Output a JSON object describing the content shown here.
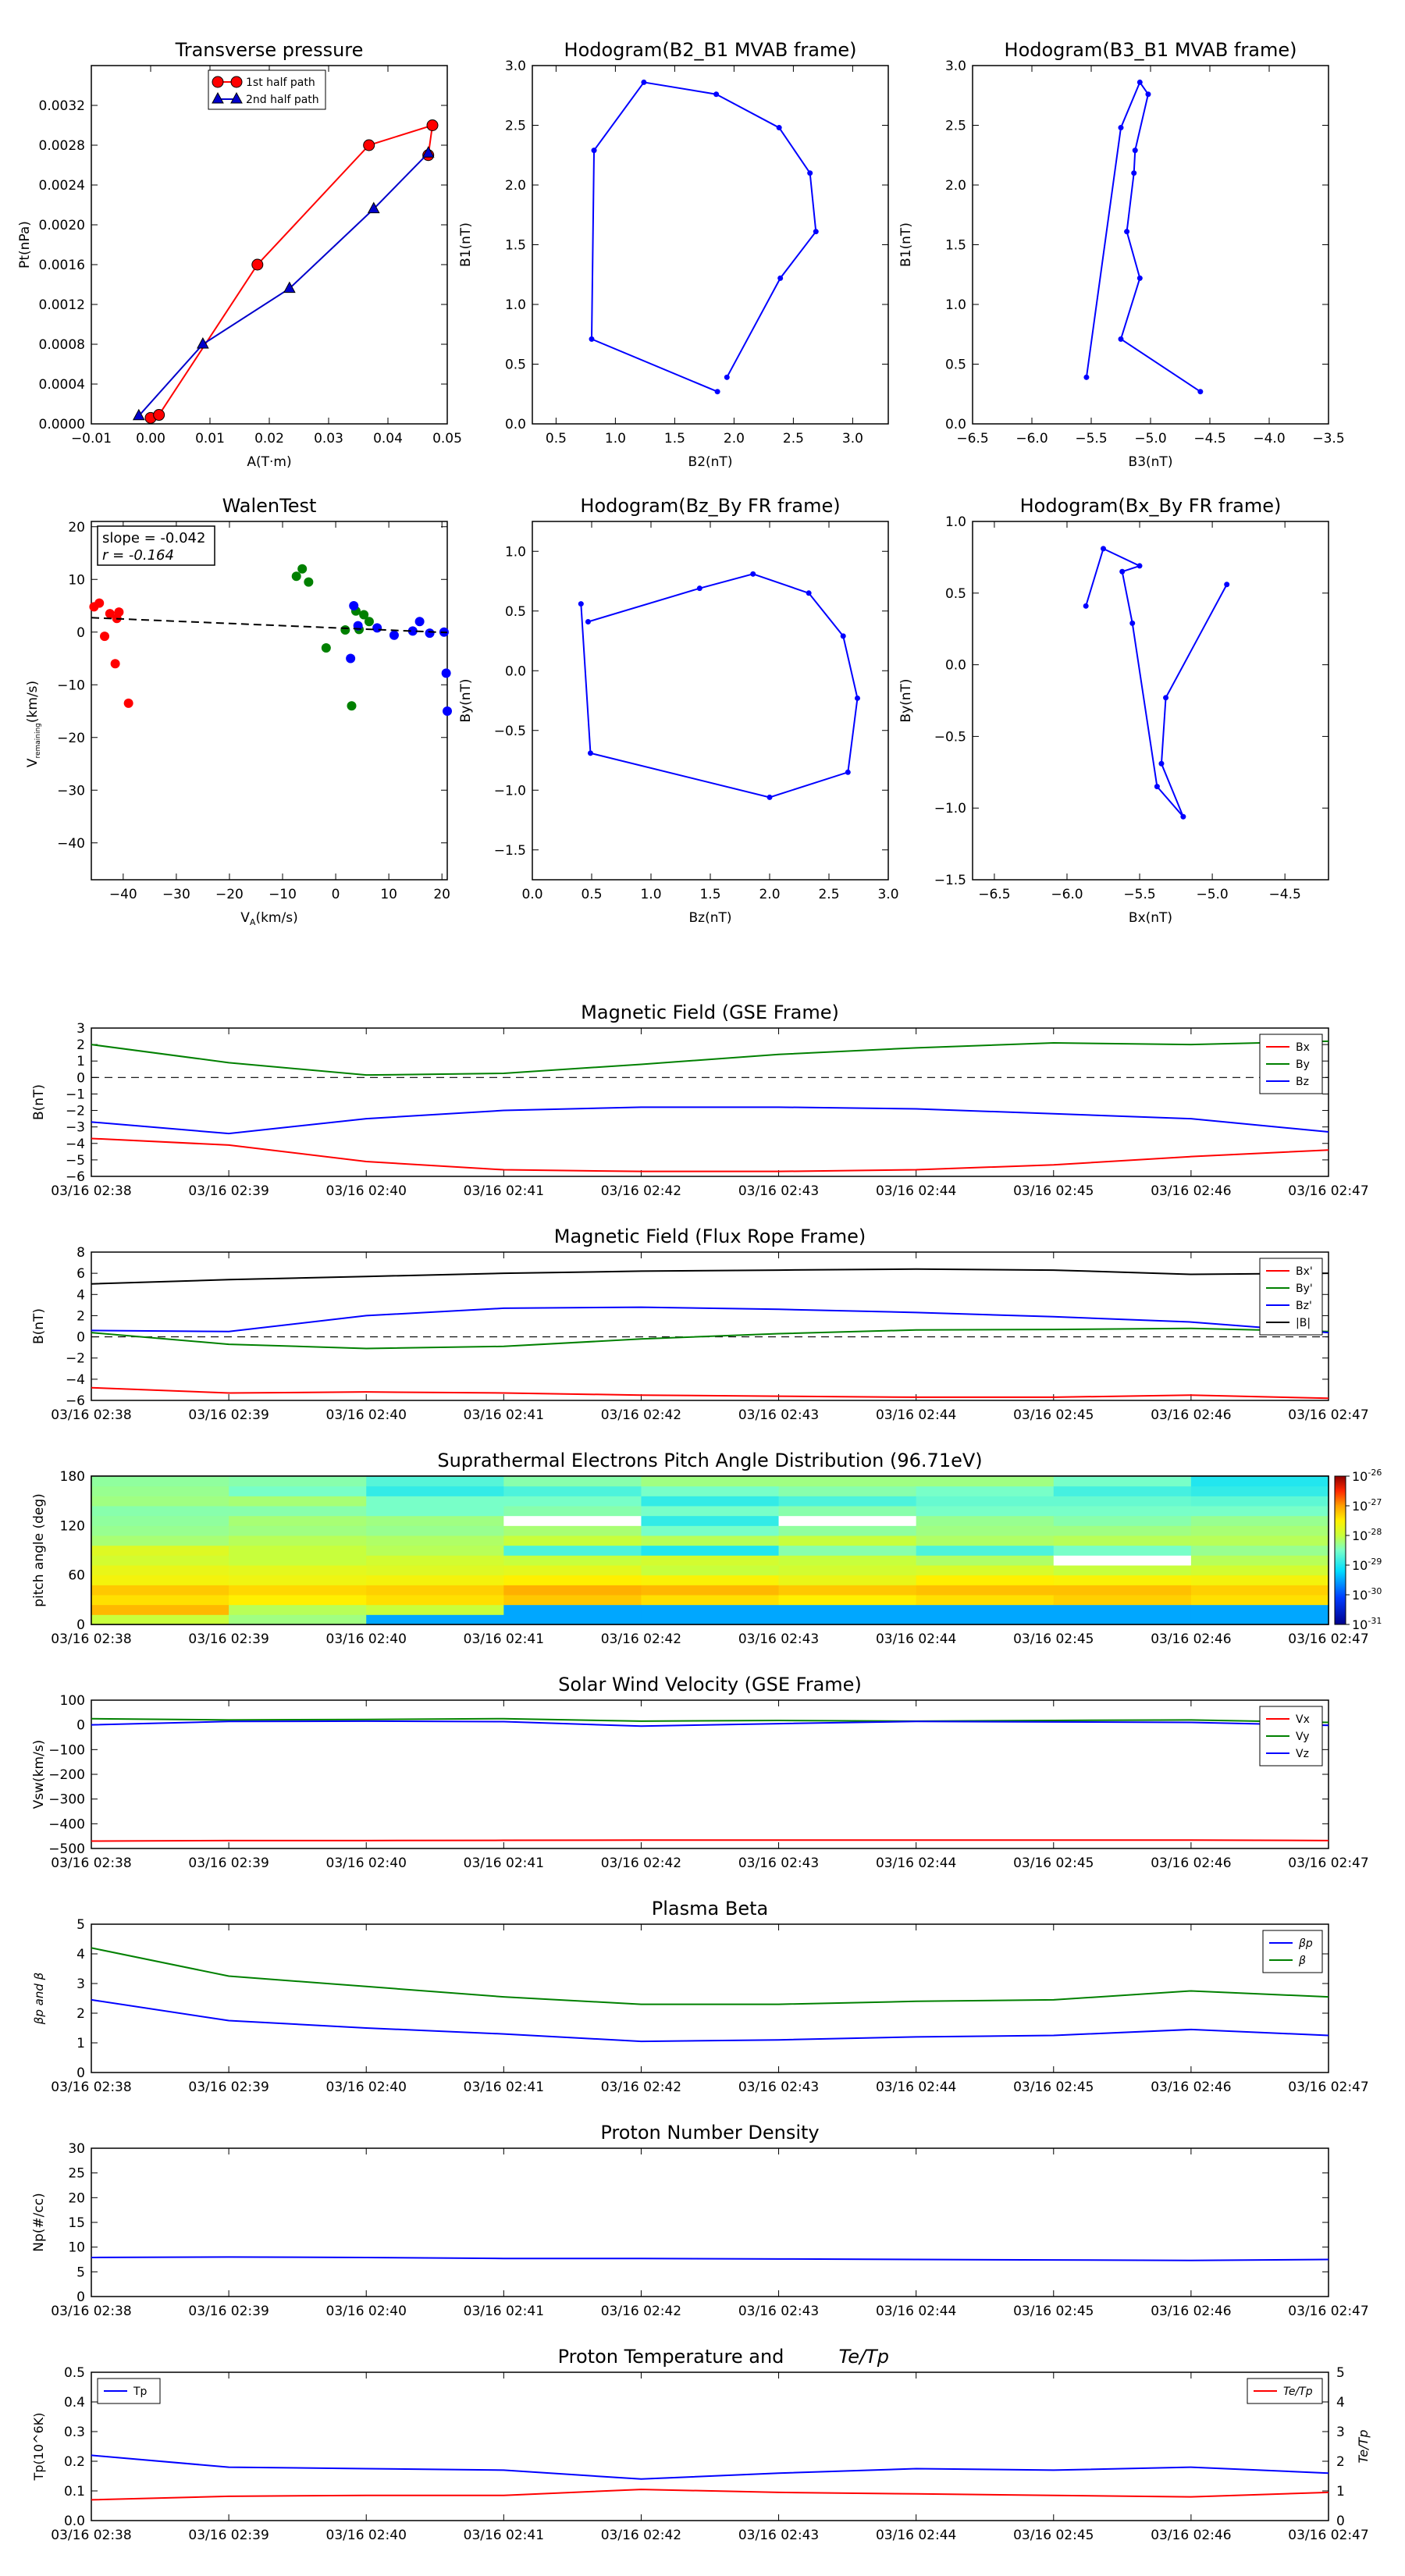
{
  "times": [
    "03/16 02:38",
    "03/16 02:39",
    "03/16 02:40",
    "03/16 02:41",
    "03/16 02:42",
    "03/16 02:43",
    "03/16 02:44",
    "03/16 02:45",
    "03/16 02:46",
    "03/16 02:47"
  ],
  "chart_data": [
    {
      "id": "tp",
      "type": "line",
      "title": "Transverse pressure",
      "xlabel": "A(T·m)",
      "ylabel": "Pt(nPa)",
      "xlim": [
        -0.01,
        0.05
      ],
      "ylim": [
        0,
        0.0036
      ],
      "xticks": [
        "−0.01",
        "0.00",
        "0.01",
        "0.02",
        "0.03",
        "0.04",
        "0.05"
      ],
      "yticks": [
        "0.0000",
        "0.0004",
        "0.0008",
        "0.0012",
        "0.0016",
        "0.0020",
        "0.0024",
        "0.0028",
        "0.0032"
      ],
      "legend": "top-center",
      "series": [
        {
          "name": "1st half path",
          "color": "#ff0000",
          "marker": "circle",
          "x": [
            0.0,
            0.0014,
            0.018,
            0.0368,
            0.0475,
            0.0468
          ],
          "y": [
            6e-05,
            9e-05,
            0.0016,
            0.0028,
            0.003,
            0.0027
          ]
        },
        {
          "name": "2nd half path",
          "color": "#0000cc",
          "marker": "triangle",
          "x": [
            -0.002,
            0.0088,
            0.0234,
            0.0376,
            0.0468
          ],
          "y": [
            8e-05,
            0.0008,
            0.00136,
            0.00216,
            0.00272
          ]
        }
      ]
    },
    {
      "id": "h1",
      "type": "line",
      "title": "Hodogram(B2_B1 MVAB frame)",
      "xlabel": "B2(nT)",
      "ylabel": "B1(nT)",
      "xlim": [
        0.3,
        3.3
      ],
      "ylim": [
        0,
        3.0
      ],
      "xticks": [
        "0.5",
        "1.0",
        "1.5",
        "2.0",
        "2.5",
        "3.0"
      ],
      "yticks": [
        "0.0",
        "0.5",
        "1.0",
        "1.5",
        "2.0",
        "2.5",
        "3.0"
      ],
      "series": [
        {
          "color": "#0000ff",
          "marker": "dot",
          "x": [
            1.94,
            2.39,
            2.69,
            2.64,
            2.38,
            1.85,
            1.24,
            0.82,
            0.8,
            1.86
          ],
          "y": [
            0.39,
            1.22,
            1.61,
            2.1,
            2.48,
            2.76,
            2.86,
            2.29,
            0.71,
            0.27
          ]
        }
      ]
    },
    {
      "id": "h2",
      "type": "line",
      "title": "Hodogram(B3_B1 MVAB frame)",
      "xlabel": "B3(nT)",
      "ylabel": "B1(nT)",
      "xlim": [
        -6.5,
        -3.5
      ],
      "ylim": [
        0,
        3.0
      ],
      "xticks": [
        "−6.5",
        "−6.0",
        "−5.5",
        "−5.0",
        "−4.5",
        "−4.0",
        "−3.5"
      ],
      "yticks": [
        "0.0",
        "0.5",
        "1.0",
        "1.5",
        "2.0",
        "2.5",
        "3.0"
      ],
      "series": [
        {
          "color": "#0000ff",
          "marker": "dot",
          "x": [
            -4.58,
            -5.25,
            -5.09,
            -5.2,
            -5.14,
            -5.13,
            -5.02,
            -5.09,
            -5.25,
            -5.54
          ],
          "y": [
            0.27,
            0.71,
            1.22,
            1.61,
            2.1,
            2.29,
            2.76,
            2.86,
            2.48,
            0.39
          ]
        }
      ]
    },
    {
      "id": "walen",
      "type": "scatter",
      "title": "WalenTest",
      "xlabel": "V",
      "xlabel_sub": "A",
      "xlabel_unit": "(km/s)",
      "ylabel": "V",
      "ylabel_sub": "remaining",
      "ylabel_unit": "(km/s)",
      "xlim": [
        -46,
        21
      ],
      "ylim": [
        -47,
        21
      ],
      "xticks": [
        "−40",
        "−30",
        "−20",
        "−10",
        "0",
        "10",
        "20"
      ],
      "yticks": [
        "−40",
        "−30",
        "−20",
        "−10",
        "0",
        "10",
        "20"
      ],
      "annotation": [
        "slope = -0.042",
        "r = -0.164"
      ],
      "fit": {
        "slope": -0.042,
        "intercept": 0.8
      },
      "series": [
        {
          "color": "#ff0000",
          "x": [
            -45.5,
            -44.5,
            -43.5,
            -42.5,
            -41.5,
            -41.2,
            -40.8,
            -39.0
          ],
          "y": [
            4.8,
            5.5,
            -0.8,
            3.5,
            -6.0,
            2.6,
            3.8,
            -13.5
          ]
        },
        {
          "color": "#008000",
          "x": [
            -7.4,
            -6.3,
            -5.1,
            -1.8,
            1.8,
            3.0,
            3.8,
            4.4,
            5.3,
            6.3
          ],
          "y": [
            10.6,
            12.0,
            9.5,
            -3.0,
            0.4,
            -14.0,
            4.0,
            0.5,
            3.3,
            2.0
          ]
        },
        {
          "color": "#0000ff",
          "x": [
            2.8,
            3.4,
            4.2,
            7.8,
            11.0,
            14.5,
            15.8,
            17.7,
            20.4,
            20.8,
            21.0
          ],
          "y": [
            -5.0,
            5.0,
            1.2,
            0.8,
            -0.6,
            0.2,
            2.0,
            -0.2,
            0.0,
            -7.8,
            -15.0
          ]
        }
      ]
    },
    {
      "id": "h3",
      "type": "line",
      "title": "Hodogram(Bz_By FR frame)",
      "xlabel": "Bz(nT)",
      "ylabel": "By(nT)",
      "xlim": [
        0,
        3.0
      ],
      "ylim": [
        -1.75,
        1.25
      ],
      "xticks": [
        "0.0",
        "0.5",
        "1.0",
        "1.5",
        "2.0",
        "2.5",
        "3.0"
      ],
      "yticks": [
        "−1.5",
        "−1.0",
        "−0.5",
        "0.0",
        "0.5",
        "1.0"
      ],
      "series": [
        {
          "color": "#0000ff",
          "marker": "dot",
          "x": [
            0.47,
            1.41,
            1.86,
            2.33,
            2.62,
            2.74,
            2.66,
            2.0,
            0.49,
            0.41
          ],
          "y": [
            0.41,
            0.69,
            0.81,
            0.65,
            0.29,
            -0.23,
            -0.85,
            -1.06,
            -0.69,
            0.56
          ]
        }
      ]
    },
    {
      "id": "h4",
      "type": "line",
      "title": "Hodogram(Bx_By FR frame)",
      "xlabel": "Bx(nT)",
      "ylabel": "By(nT)",
      "xlim": [
        -6.65,
        -4.2
      ],
      "ylim": [
        -1.5,
        1.0
      ],
      "xticks": [
        "−6.5",
        "−6.0",
        "−5.5",
        "−5.0",
        "−4.5"
      ],
      "yticks": [
        "−1.5",
        "−1.0",
        "−0.5",
        "0.0",
        "0.5",
        "1.0"
      ],
      "series": [
        {
          "color": "#0000ff",
          "marker": "dot",
          "x": [
            -4.9,
            -5.32,
            -5.35,
            -5.2,
            -5.38,
            -5.55,
            -5.62,
            -5.5,
            -5.75,
            -5.87
          ],
          "y": [
            0.56,
            -0.23,
            -0.69,
            -1.06,
            -0.85,
            0.29,
            0.65,
            0.69,
            0.81,
            0.41
          ]
        }
      ]
    },
    {
      "id": "mag_gse",
      "type": "line",
      "title": "Magnetic Field (GSE Frame)",
      "ylabel": "B(nT)",
      "xlim": [
        0,
        9
      ],
      "ylim": [
        -6,
        3
      ],
      "yticks": [
        "−6",
        "−5",
        "−4",
        "−3",
        "−2",
        "−1",
        "0",
        "1",
        "2",
        "3"
      ],
      "zero_line": true,
      "legend": "top-right",
      "series": [
        {
          "name": "Bx",
          "color": "#ff0000",
          "values": [
            -3.7,
            -4.1,
            -5.1,
            -5.6,
            -5.7,
            -5.7,
            -5.6,
            -5.3,
            -4.8,
            -4.4
          ]
        },
        {
          "name": "By",
          "color": "#008000",
          "values": [
            2.0,
            0.9,
            0.15,
            0.25,
            0.8,
            1.4,
            1.8,
            2.1,
            2.0,
            2.2
          ]
        },
        {
          "name": "Bz",
          "color": "#0000ff",
          "values": [
            -2.7,
            -3.4,
            -2.5,
            -2.0,
            -1.8,
            -1.8,
            -1.9,
            -2.2,
            -2.5,
            -3.3
          ]
        }
      ]
    },
    {
      "id": "mag_fr",
      "type": "line",
      "title": "Magnetic Field (Flux Rope Frame)",
      "ylabel": "B(nT)",
      "xlim": [
        0,
        9
      ],
      "ylim": [
        -6,
        8
      ],
      "yticks": [
        "−6",
        "−4",
        "−2",
        "0",
        "2",
        "4",
        "6",
        "8"
      ],
      "zero_line": true,
      "legend": "top-right",
      "series": [
        {
          "name": "Bx'",
          "color": "#ff0000",
          "values": [
            -4.8,
            -5.3,
            -5.2,
            -5.3,
            -5.5,
            -5.6,
            -5.7,
            -5.7,
            -5.5,
            -5.8
          ]
        },
        {
          "name": "By'",
          "color": "#008000",
          "values": [
            0.4,
            -0.7,
            -1.1,
            -0.9,
            -0.2,
            0.3,
            0.65,
            0.7,
            0.8,
            0.5
          ]
        },
        {
          "name": "Bz'",
          "color": "#0000ff",
          "values": [
            0.6,
            0.5,
            2.0,
            2.7,
            2.8,
            2.6,
            2.3,
            1.9,
            1.4,
            0.4
          ]
        },
        {
          "name": "|B|",
          "color": "#000000",
          "values": [
            5.0,
            5.4,
            5.7,
            6.0,
            6.2,
            6.3,
            6.4,
            6.3,
            5.9,
            6.0
          ]
        }
      ]
    },
    {
      "id": "pad",
      "type": "heatmap",
      "title": "Suprathermal Electrons Pitch Angle Distribution (96.71eV)",
      "ylabel": "pitch angle (deg)",
      "xlim": [
        0,
        9
      ],
      "ylim": [
        0,
        180
      ],
      "yticks": [
        "0",
        "60",
        "120",
        "180"
      ],
      "colorbar": {
        "ticks": [
          "10-26",
          "10-27",
          "10-28",
          "10-29",
          "10-30",
          "10-31"
        ],
        "base": "10",
        "exponents": [
          "-26",
          "-27",
          "-28",
          "-29",
          "-30",
          "-31"
        ]
      },
      "row_edges": [
        0,
        12,
        24,
        36,
        48,
        60,
        72,
        84,
        96,
        108,
        120,
        132,
        144,
        156,
        168,
        180
      ],
      "level_scale": "0 = 1e-31 (dark blue) … 1 = 1e-26 (dark red)",
      "columns": [
        [
          0.6,
          0.77,
          0.72,
          0.75,
          0.68,
          0.66,
          0.62,
          0.64,
          0.56,
          0.54,
          0.53,
          0.52,
          0.55,
          0.54,
          0.53
        ],
        [
          0.55,
          0.58,
          0.7,
          0.73,
          0.67,
          0.65,
          0.6,
          0.6,
          0.58,
          0.55,
          0.56,
          0.52,
          0.56,
          0.5,
          0.52
        ],
        [
          0.3,
          0.6,
          0.72,
          0.74,
          0.68,
          0.64,
          0.62,
          0.58,
          0.57,
          0.54,
          0.55,
          0.5,
          0.5,
          0.42,
          0.46
        ],
        [
          0.3,
          0.3,
          0.75,
          0.78,
          0.7,
          0.65,
          0.6,
          0.45,
          0.6,
          0.56,
          -1,
          0.52,
          0.5,
          0.45,
          0.52
        ],
        [
          0.3,
          0.3,
          0.72,
          0.77,
          0.69,
          0.6,
          0.62,
          0.4,
          0.58,
          0.5,
          0.42,
          0.5,
          0.42,
          0.5,
          0.55
        ],
        [
          0.3,
          0.3,
          0.7,
          0.75,
          0.66,
          0.62,
          0.6,
          0.52,
          0.6,
          0.53,
          -1,
          0.52,
          0.45,
          0.52,
          0.55
        ],
        [
          0.3,
          0.3,
          0.72,
          0.76,
          0.7,
          0.63,
          0.57,
          0.45,
          0.57,
          0.55,
          0.54,
          0.5,
          0.48,
          0.5,
          0.55
        ],
        [
          0.3,
          0.3,
          0.74,
          0.76,
          0.69,
          0.6,
          -1,
          0.5,
          0.58,
          0.55,
          0.52,
          0.5,
          0.48,
          0.44,
          0.5
        ],
        [
          0.3,
          0.3,
          0.72,
          0.74,
          0.68,
          0.62,
          0.58,
          0.54,
          0.58,
          0.56,
          0.54,
          0.5,
          0.47,
          0.42,
          0.4
        ]
      ]
    },
    {
      "id": "vsw",
      "type": "line",
      "title": "Solar Wind Velocity (GSE Frame)",
      "ylabel": "Vsw(km/s)",
      "xlim": [
        0,
        9
      ],
      "ylim": [
        -500,
        100
      ],
      "yticks": [
        "−500",
        "−400",
        "−300",
        "−200",
        "−100",
        "0",
        "100"
      ],
      "legend": "top-right",
      "series": [
        {
          "name": "Vx",
          "color": "#ff0000",
          "values": [
            -470,
            -468,
            -468,
            -467,
            -466,
            -466,
            -466,
            -466,
            -466,
            -468
          ]
        },
        {
          "name": "Vy",
          "color": "#008000",
          "values": [
            25,
            20,
            22,
            25,
            15,
            18,
            15,
            18,
            20,
            10
          ]
        },
        {
          "name": "Vz",
          "color": "#0000ff",
          "values": [
            0,
            14,
            15,
            13,
            -5,
            5,
            14,
            12,
            10,
            -2
          ]
        }
      ]
    },
    {
      "id": "beta",
      "type": "line",
      "title": "Plasma Beta",
      "ylabel": "βp and β",
      "xlim": [
        0,
        9
      ],
      "ylim": [
        0,
        5
      ],
      "yticks": [
        "0",
        "1",
        "2",
        "3",
        "4",
        "5"
      ],
      "legend": "top-right",
      "series": [
        {
          "name": "βp",
          "color": "#0000ff",
          "values": [
            2.45,
            1.75,
            1.5,
            1.3,
            1.05,
            1.1,
            1.2,
            1.25,
            1.45,
            1.25
          ]
        },
        {
          "name": "β",
          "color": "#008000",
          "values": [
            4.2,
            3.25,
            2.9,
            2.55,
            2.3,
            2.3,
            2.4,
            2.45,
            2.75,
            2.55
          ]
        }
      ]
    },
    {
      "id": "np",
      "type": "line",
      "title": "Proton Number Density",
      "ylabel": "Np(#/cc)",
      "xlim": [
        0,
        9
      ],
      "ylim": [
        0,
        30
      ],
      "yticks": [
        "0",
        "5",
        "10",
        "15",
        "20",
        "25",
        "30"
      ],
      "series": [
        {
          "color": "#0000ff",
          "values": [
            7.9,
            8.0,
            7.9,
            7.7,
            7.7,
            7.6,
            7.5,
            7.4,
            7.3,
            7.5
          ]
        }
      ]
    },
    {
      "id": "temp",
      "type": "line",
      "title": "Proton Temperature and",
      "title_math": "Te/Tp",
      "ylabel": "Tp(10^6K)",
      "ylabel_right": "Te/Tp",
      "xlim": [
        0,
        9
      ],
      "ylim": [
        0,
        0.5
      ],
      "ylim_right": [
        0,
        5
      ],
      "yticks": [
        "0.0",
        "0.1",
        "0.2",
        "0.3",
        "0.4",
        "0.5"
      ],
      "yticks_right": [
        "0",
        "1",
        "2",
        "3",
        "4",
        "5"
      ],
      "legend": "top-left / top-right",
      "series": [
        {
          "name": "Tp",
          "color": "#0000ff",
          "axis": "left",
          "values": [
            0.22,
            0.18,
            0.175,
            0.17,
            0.14,
            0.16,
            0.175,
            0.17,
            0.18,
            0.16
          ]
        },
        {
          "name": "Te/Tp",
          "color": "#ff0000",
          "axis": "right",
          "values": [
            0.7,
            0.82,
            0.85,
            0.85,
            1.05,
            0.95,
            0.9,
            0.85,
            0.8,
            0.95
          ]
        }
      ]
    }
  ]
}
